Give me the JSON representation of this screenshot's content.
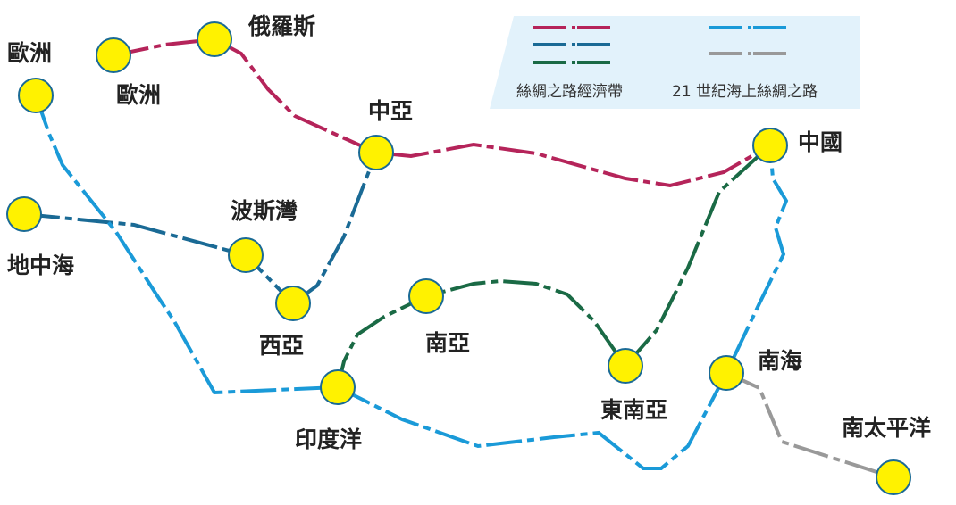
{
  "colors": {
    "red": "#b5245a",
    "blue": "#1a6a95",
    "green": "#1a6a45",
    "sea": "#1a9ad8",
    "gray": "#999999",
    "node": "#fff200",
    "node_stroke": "#1a6a95",
    "legend_bg": "#e2f2fb"
  },
  "legend": {
    "belt": "絲綢之路經濟帶",
    "road": "21 世紀海上絲綢之路"
  },
  "nodes": {
    "europe_west": "歐洲",
    "europe": "歐洲",
    "russia": "俄羅斯",
    "central_asia": "中亞",
    "china": "中國",
    "mediterranean": "地中海",
    "persian_gulf": "波斯灣",
    "west_asia": "西亞",
    "south_asia": "南亞",
    "indian_ocean": "印度洋",
    "southeast_asia": "東南亞",
    "south_china_sea": "南海",
    "south_pacific": "南太平洋"
  }
}
